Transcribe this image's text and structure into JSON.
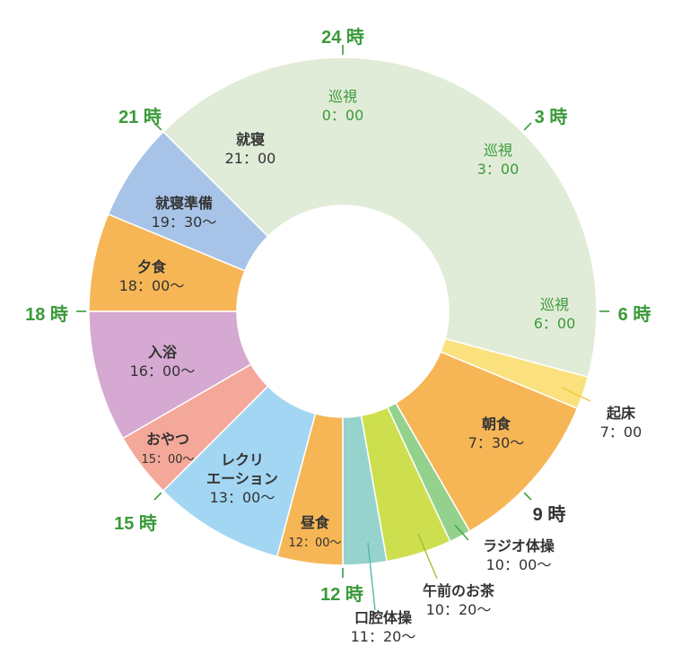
{
  "chart_data": {
    "type": "pie",
    "variant": "donut",
    "unit": "hours",
    "clock": "24h",
    "hour_labels": [
      {
        "hour": 0,
        "text": "24 時",
        "color": "#3a9a3a"
      },
      {
        "hour": 3,
        "text": "3 時",
        "color": "#3a9a3a"
      },
      {
        "hour": 6,
        "text": "6 時",
        "color": "#3a9a3a"
      },
      {
        "hour": 9,
        "text": "9 時",
        "color": "#333333"
      },
      {
        "hour": 12,
        "text": "12 時",
        "color": "#3a9a3a"
      },
      {
        "hour": 15,
        "text": "15 時",
        "color": "#3a9a3a"
      },
      {
        "hour": 18,
        "text": "18 時",
        "color": "#3a9a3a"
      },
      {
        "hour": 21,
        "text": "21 時",
        "color": "#3a9a3a"
      }
    ],
    "segments": [
      {
        "name": "就寝",
        "time": "21：00",
        "start": 21.0,
        "end": 31.0,
        "color": "#e1ecd8"
      },
      {
        "name": "起床",
        "time": "7：00",
        "start": 7.0,
        "end": 7.5,
        "color": "#fae17e"
      },
      {
        "name": "朝食",
        "time": "7：30〜",
        "start": 7.5,
        "end": 10.0,
        "color": "#f6b656"
      },
      {
        "name": "ラジオ体操",
        "time": "10：00〜",
        "start": 10.0,
        "end": 10.333,
        "color": "#93d18d"
      },
      {
        "name": "午前のお茶",
        "time": "10：20〜",
        "start": 10.333,
        "end": 11.333,
        "color": "#cddf4e"
      },
      {
        "name": "口腔体操",
        "time": "11：20〜",
        "start": 11.333,
        "end": 12.0,
        "color": "#96d3cd"
      },
      {
        "name": "昼食",
        "time": "12：00〜",
        "start": 12.0,
        "end": 13.0,
        "color": "#f6b656"
      },
      {
        "name": "レクリエーション",
        "time": "13：00〜",
        "start": 13.0,
        "end": 15.0,
        "color": "#a3d6f3"
      },
      {
        "name": "おやつ",
        "time": "15：00〜",
        "start": 15.0,
        "end": 16.0,
        "color": "#f4a89a"
      },
      {
        "name": "入浴",
        "time": "16：00〜",
        "start": 16.0,
        "end": 18.0,
        "color": "#d5a9d1"
      },
      {
        "name": "夕食",
        "time": "18：00〜",
        "start": 18.0,
        "end": 19.5,
        "color": "#f6b656"
      },
      {
        "name": "就寝準備",
        "time": "19：30〜",
        "start": 19.5,
        "end": 21.0,
        "color": "#a7c4e8"
      }
    ],
    "annotations": [
      {
        "name": "巡視",
        "time": "0：00",
        "color": "#3a9a3a"
      },
      {
        "name": "巡視",
        "time": "3：00",
        "color": "#3a9a3a"
      },
      {
        "name": "巡視",
        "time": "6：00",
        "color": "#3a9a3a"
      }
    ]
  }
}
